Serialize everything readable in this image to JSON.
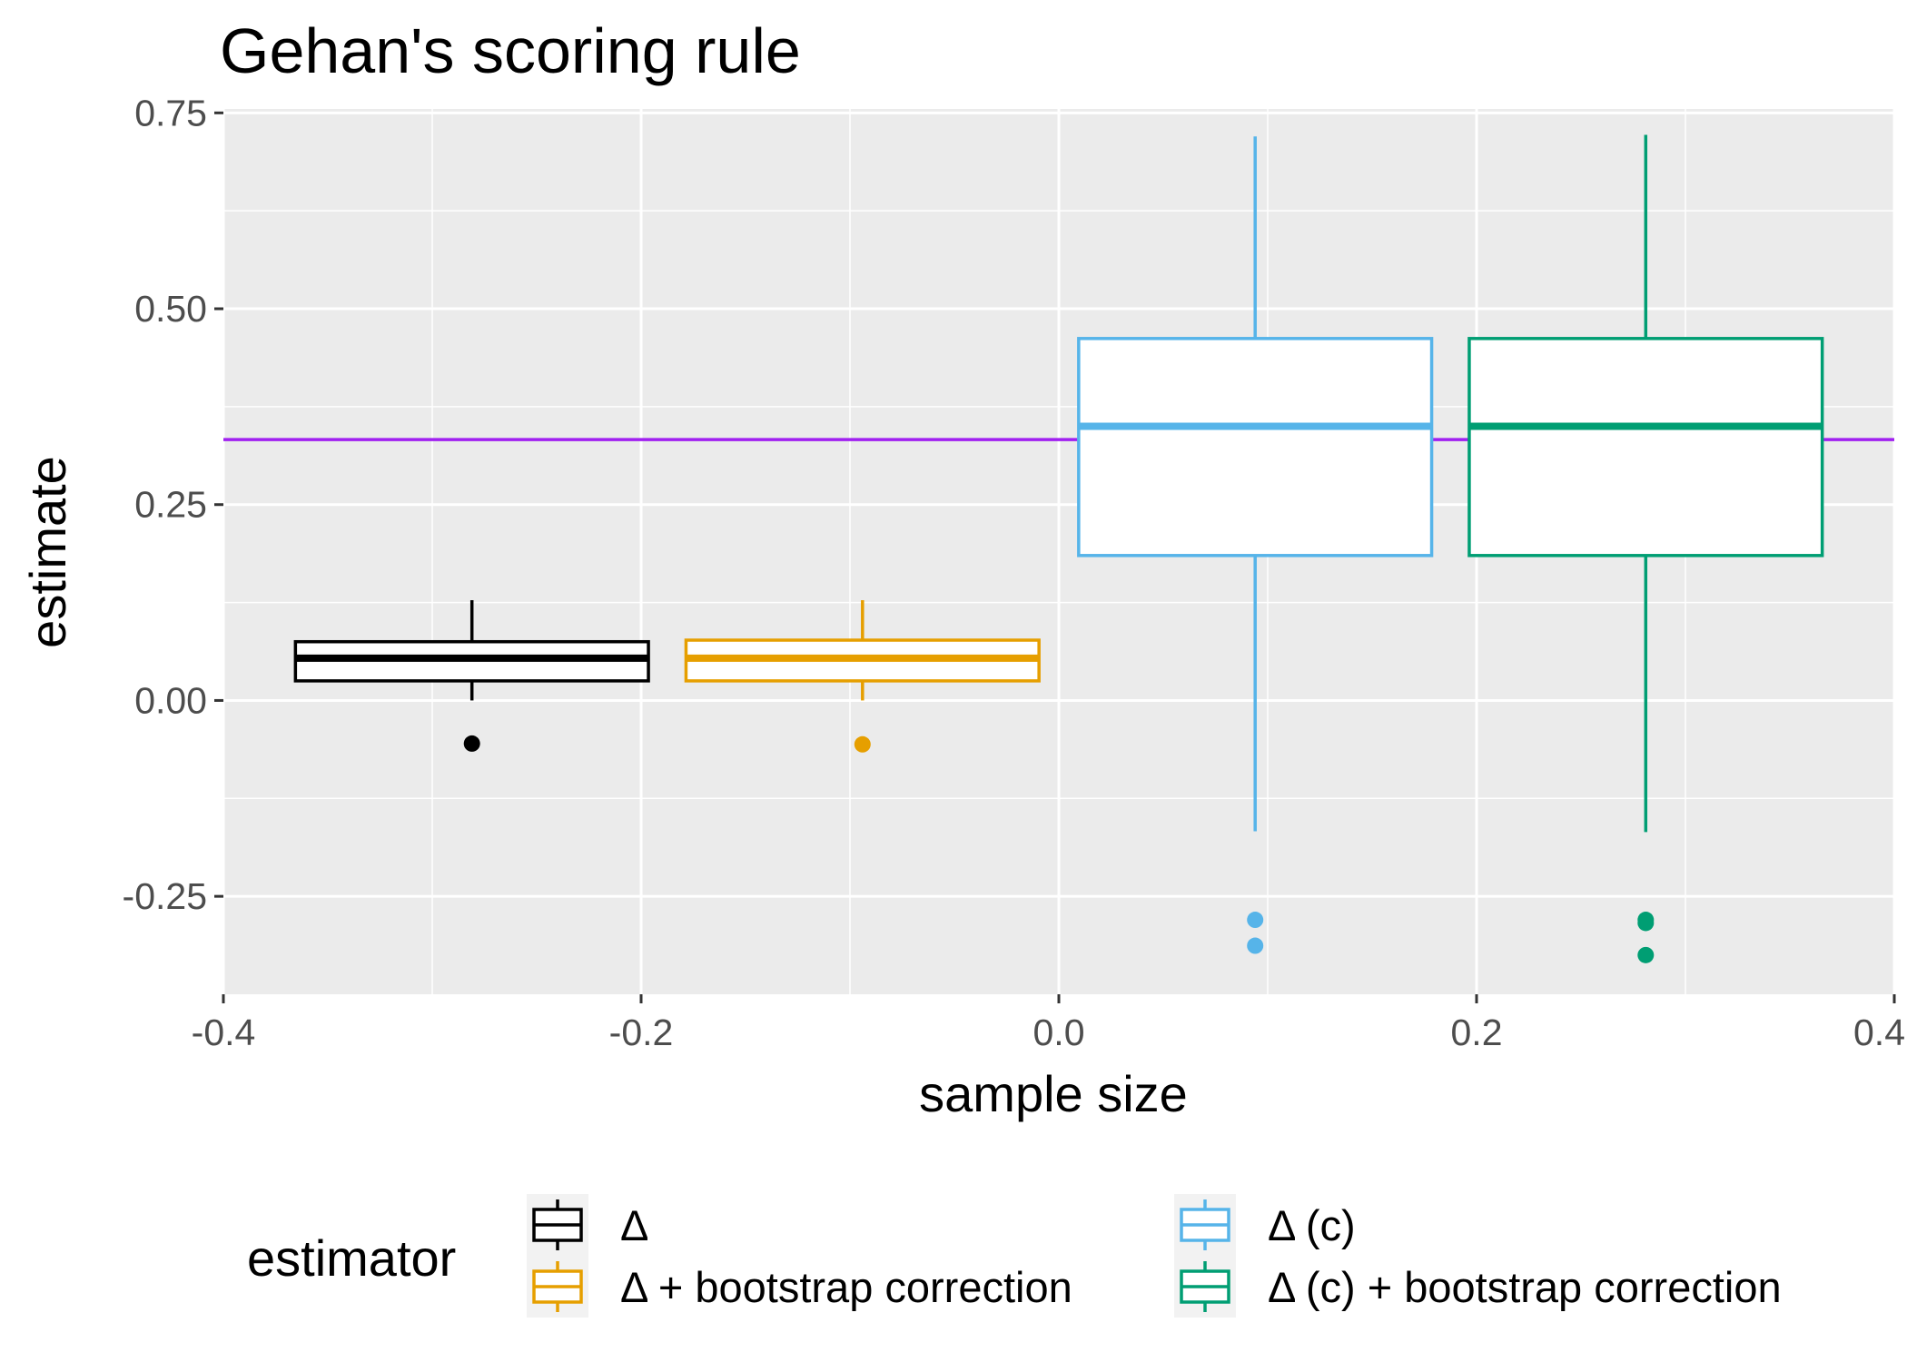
{
  "chart_data": {
    "type": "boxplot",
    "title": "Gehan's scoring rule",
    "xlabel": "sample size",
    "ylabel": "estimate",
    "xlim": [
      -0.4,
      0.4
    ],
    "ylim": [
      -0.375,
      0.755
    ],
    "x_ticks": [
      -0.4,
      -0.2,
      0.0,
      0.2,
      0.4
    ],
    "x_tick_labels": [
      "-0.4",
      "-0.2",
      "0.0",
      "0.2",
      "0.4"
    ],
    "y_ticks": [
      -0.25,
      0.0,
      0.25,
      0.5,
      0.75
    ],
    "y_tick_labels": [
      "-0.25",
      "0.00",
      "0.25",
      "0.50",
      "0.75"
    ],
    "grid": true,
    "reference_line": {
      "y": 0.333,
      "color": "#a020f0"
    },
    "legend": {
      "title": "estimator",
      "position": "bottom",
      "entries": [
        "Δ",
        "Δ + bootstrap correction",
        "Δ (c)",
        "Δ (c) + bootstrap correction"
      ]
    },
    "series": [
      {
        "name": "Δ",
        "color": "#000000",
        "x_center": -0.281,
        "box_width": 0.169,
        "whisker_low": 0.0,
        "q1": 0.025,
        "median": 0.054,
        "q3": 0.075,
        "whisker_high": 0.128,
        "outliers": [
          -0.055
        ]
      },
      {
        "name": "Δ + bootstrap correction",
        "color": "#e69f00",
        "x_center": -0.094,
        "box_width": 0.169,
        "whisker_low": 0.0,
        "q1": 0.025,
        "median": 0.054,
        "q3": 0.077,
        "whisker_high": 0.128,
        "outliers": [
          -0.056
        ]
      },
      {
        "name": "Δ (c)",
        "color": "#56b4e9",
        "x_center": 0.094,
        "box_width": 0.169,
        "whisker_low": -0.167,
        "q1": 0.185,
        "median": 0.35,
        "q3": 0.462,
        "whisker_high": 0.72,
        "outliers": [
          -0.28,
          -0.313
        ]
      },
      {
        "name": "Δ (c) + bootstrap correction",
        "color": "#009e73",
        "x_center": 0.281,
        "box_width": 0.169,
        "whisker_low": -0.168,
        "q1": 0.185,
        "median": 0.35,
        "q3": 0.462,
        "whisker_high": 0.722,
        "outliers": [
          -0.28,
          -0.284,
          -0.325
        ]
      }
    ]
  }
}
